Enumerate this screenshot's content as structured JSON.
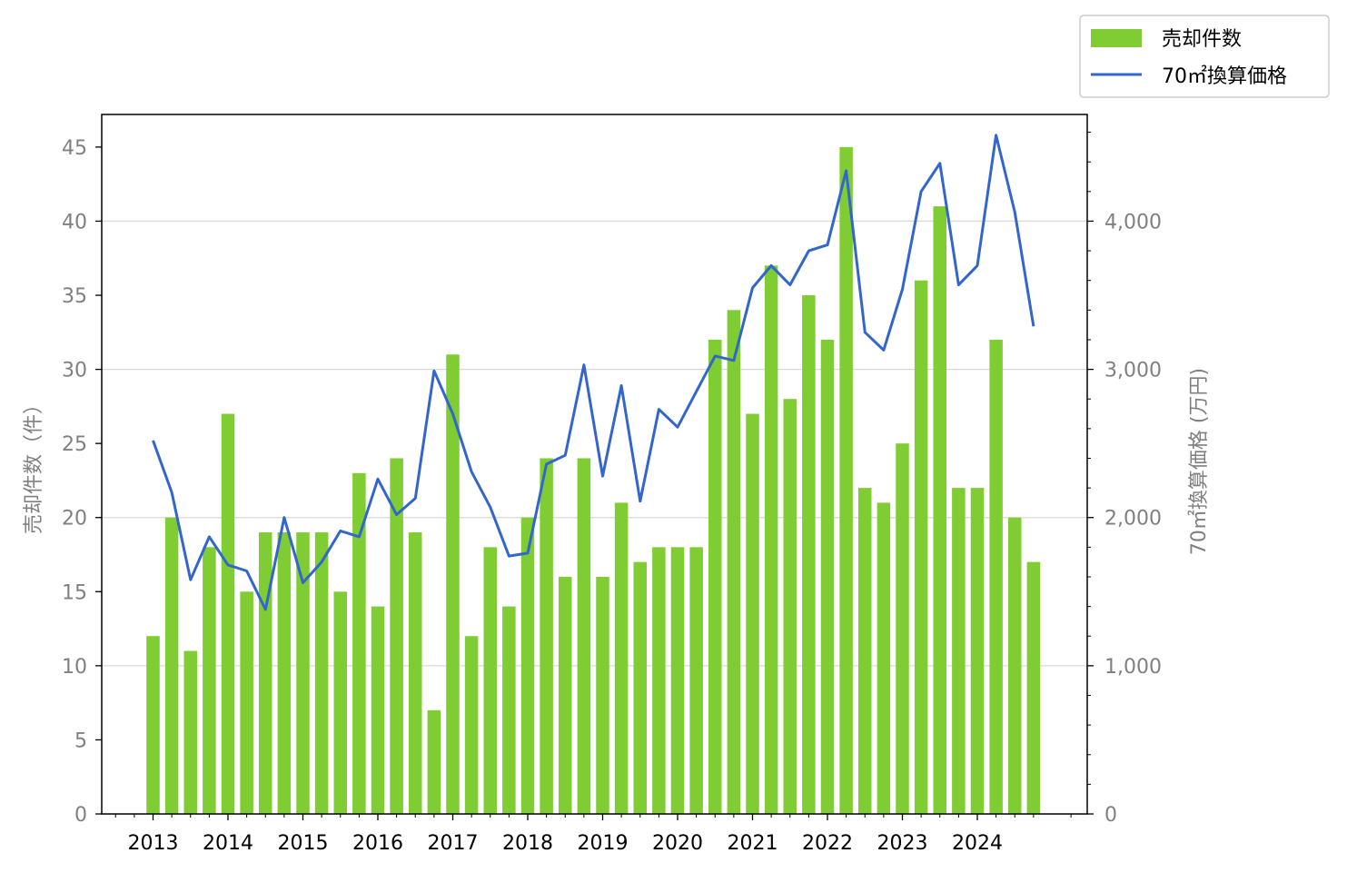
{
  "chart_data": {
    "type": "bar",
    "title": "",
    "xlabel": "",
    "ylabel": "売却件数（件）",
    "y2label": "70㎡換算価格 (万円)",
    "x_tick_labels": [
      "2013",
      "2014",
      "2015",
      "2016",
      "2017",
      "2018",
      "2019",
      "2020",
      "2021",
      "2022",
      "2023",
      "2024"
    ],
    "x_tick_years": [
      2013,
      2014,
      2015,
      2016,
      2017,
      2018,
      2019,
      2020,
      2021,
      2022,
      2023,
      2024
    ],
    "x": [
      2013.0,
      2013.25,
      2013.5,
      2013.75,
      2014.0,
      2014.25,
      2014.5,
      2014.75,
      2015.0,
      2015.25,
      2015.5,
      2015.75,
      2016.0,
      2016.25,
      2016.5,
      2016.75,
      2017.0,
      2017.25,
      2017.5,
      2017.75,
      2018.0,
      2018.25,
      2018.5,
      2018.75,
      2019.0,
      2019.25,
      2019.5,
      2019.75,
      2020.0,
      2020.25,
      2020.5,
      2020.75,
      2021.0,
      2021.25,
      2021.5,
      2021.75,
      2022.0,
      2022.25,
      2022.5,
      2022.75,
      2023.0,
      2023.25,
      2023.5,
      2023.75,
      2024.0,
      2024.25,
      2024.5,
      2024.75
    ],
    "ylim": [
      0,
      47.2
    ],
    "y_ticks": [
      0,
      5,
      10,
      15,
      20,
      25,
      30,
      35,
      40,
      45
    ],
    "y2lim": [
      0,
      4720
    ],
    "y2_ticks": [
      0,
      1000,
      2000,
      3000,
      4000
    ],
    "y2_tick_labels": [
      "0",
      "1,000",
      "2,000",
      "3,000",
      "4,000"
    ],
    "grid": "horizontal",
    "legend_position": "top-right",
    "series": [
      {
        "name": "売却件数",
        "type": "bar",
        "axis": "left",
        "color": "#7fcc33",
        "values": [
          12,
          20,
          11,
          18,
          27,
          15,
          19,
          19,
          19,
          19,
          15,
          23,
          14,
          24,
          19,
          7,
          31,
          12,
          18,
          14,
          20,
          24,
          16,
          24,
          16,
          21,
          17,
          18,
          18,
          18,
          32,
          34,
          27,
          37,
          28,
          35,
          32,
          45,
          22,
          21,
          25,
          36,
          41,
          22,
          22,
          32,
          20,
          17
        ]
      },
      {
        "name": "70㎡換算価格",
        "type": "line",
        "axis": "right",
        "color": "#3366cc",
        "values": [
          2520,
          2170,
          1580,
          1870,
          1680,
          1640,
          1380,
          2000,
          1560,
          1700,
          1910,
          1870,
          2260,
          2020,
          2130,
          2990,
          2700,
          2310,
          2070,
          1740,
          1760,
          2360,
          2420,
          3030,
          2280,
          2890,
          2110,
          2730,
          2610,
          2850,
          3090,
          3060,
          3550,
          3700,
          3570,
          3800,
          3840,
          4340,
          3250,
          3130,
          3540,
          4200,
          4390,
          3570,
          3700,
          4580,
          4060,
          3290
        ]
      }
    ]
  }
}
